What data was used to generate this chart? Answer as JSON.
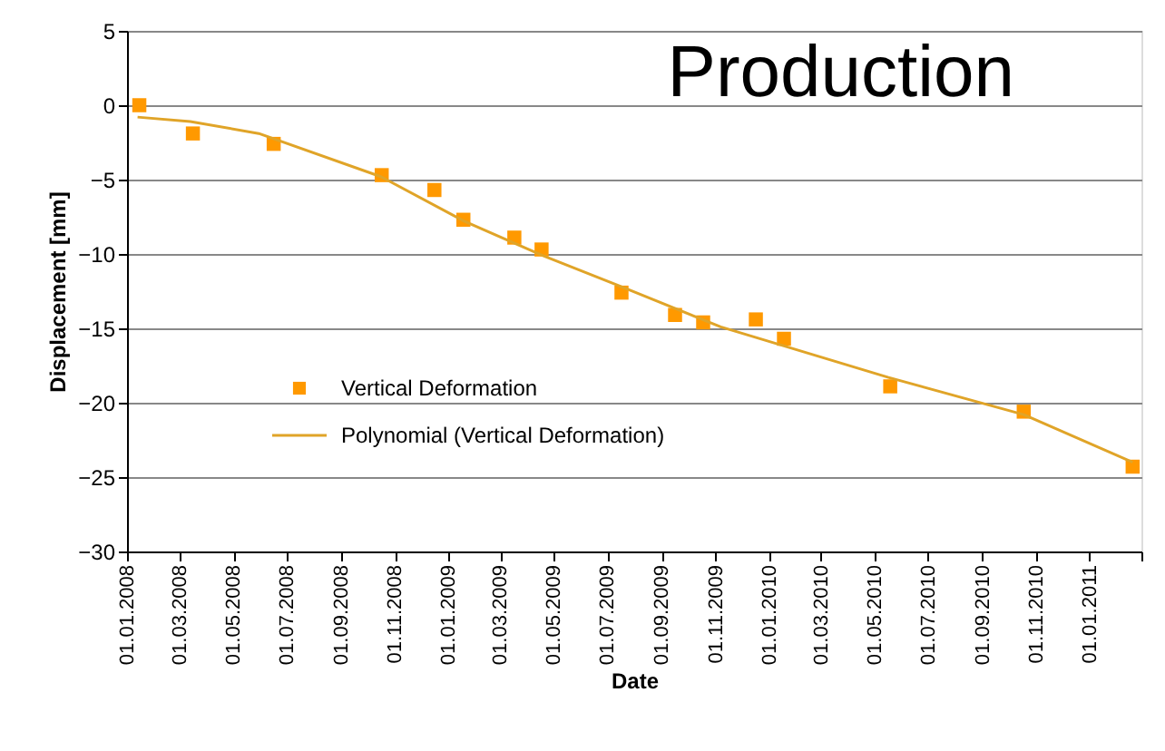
{
  "chart_data": {
    "type": "scatter",
    "title": "Production",
    "xlabel": "Date",
    "ylabel": "Displacement [mm]",
    "xlim": [
      "2008-01-01",
      "2011-03-01"
    ],
    "ylim": [
      -30,
      5
    ],
    "yticks": [
      5,
      0,
      -5,
      -10,
      -15,
      -20,
      -25,
      -30
    ],
    "xticks": [
      {
        "value": "2008-01-01",
        "label": "01.01.2008"
      },
      {
        "value": "2008-03-01",
        "label": "01.03.2008"
      },
      {
        "value": "2008-05-01",
        "label": "01.05.2008"
      },
      {
        "value": "2008-07-01",
        "label": "01.07.2008"
      },
      {
        "value": "2008-09-01",
        "label": "01.09.2008"
      },
      {
        "value": "2008-11-01",
        "label": "01.11.2008"
      },
      {
        "value": "2009-01-01",
        "label": "01.01.2009"
      },
      {
        "value": "2009-03-01",
        "label": "01.03.2009"
      },
      {
        "value": "2009-05-01",
        "label": "01.05.2009"
      },
      {
        "value": "2009-07-01",
        "label": "01.07.2009"
      },
      {
        "value": "2009-09-01",
        "label": "01.09.2009"
      },
      {
        "value": "2009-11-01",
        "label": "01.11.2009"
      },
      {
        "value": "2010-01-01",
        "label": "01.01.2010"
      },
      {
        "value": "2010-03-01",
        "label": "01.03.2010"
      },
      {
        "value": "2010-05-01",
        "label": "01.05.2010"
      },
      {
        "value": "2010-07-01",
        "label": "01.07.2010"
      },
      {
        "value": "2010-09-01",
        "label": "01.09.2010"
      },
      {
        "value": "2010-11-01",
        "label": "01.11.2010"
      },
      {
        "value": "2011-01-01",
        "label": "01.01.2011"
      },
      {
        "value": "2011-03-01",
        "label": null
      }
    ],
    "grid": "y",
    "legend": "bottom left",
    "series": [
      {
        "name": "Vertical Deformation",
        "type": "scatter",
        "marker": "square",
        "color": "#ff9900",
        "x": [
          "2008-01-15",
          "2008-03-16",
          "2008-06-16",
          "2008-10-17",
          "2008-12-16",
          "2009-01-18",
          "2009-03-17",
          "2009-04-17",
          "2009-07-17",
          "2009-09-16",
          "2009-10-18",
          "2009-12-17",
          "2010-01-18",
          "2010-05-19",
          "2010-10-18",
          "2011-02-19"
        ],
        "values": [
          0.0,
          -1.9,
          -2.6,
          -4.7,
          -5.7,
          -7.7,
          -8.9,
          -9.7,
          -12.6,
          -14.1,
          -14.6,
          -14.4,
          -15.7,
          -18.9,
          -20.6,
          -24.3
        ]
      },
      {
        "name": "Polynomial (Vertical Deformation)",
        "type": "line",
        "color": "#e0a428",
        "line_style": "solid",
        "x": [
          "2008-01-13",
          "2008-03-13",
          "2008-05-30",
          "2008-10-16",
          "2009-01-19",
          "2009-04-18",
          "2009-07-17",
          "2009-11-07",
          "2010-05-17",
          "2010-10-18",
          "2011-02-19"
        ],
        "values": [
          -0.8,
          -1.1,
          -1.9,
          -4.8,
          -7.8,
          -10.1,
          -12.2,
          -14.9,
          -18.3,
          -20.8,
          -24.0
        ]
      }
    ]
  }
}
